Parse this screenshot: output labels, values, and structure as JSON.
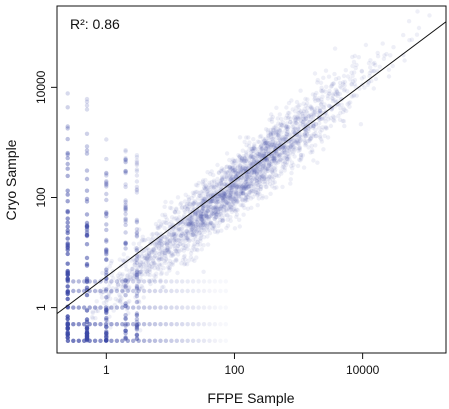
{
  "chart_data": {
    "type": "scatter",
    "title": "",
    "xlabel": "FFPE Sample",
    "ylabel": "Cryo Sample",
    "x_scale": "log",
    "y_scale": "log",
    "xlim": [
      0.17,
      200000
    ],
    "ylim": [
      0.15,
      300000
    ],
    "x_ticks": [
      1,
      100,
      10000
    ],
    "x_tick_labels": [
      "1",
      "100",
      "10000"
    ],
    "y_ticks": [
      1,
      100,
      10000
    ],
    "y_tick_labels": [
      "1",
      "100",
      "10000"
    ],
    "annotation": "R²:  0.86",
    "grid": false,
    "point_color": "#3d49a6",
    "fit_line": {
      "x": [
        0.17,
        200000
      ],
      "y": [
        0.78,
        155000
      ]
    },
    "discrete_x_columns": [
      0.25,
      0.5,
      1,
      2,
      3
    ],
    "discrete_y_rows": [
      0.25,
      0.5,
      1,
      2,
      3
    ],
    "cloud": {
      "center_x": 100,
      "center_y": 160,
      "n_points": 2600
    }
  }
}
